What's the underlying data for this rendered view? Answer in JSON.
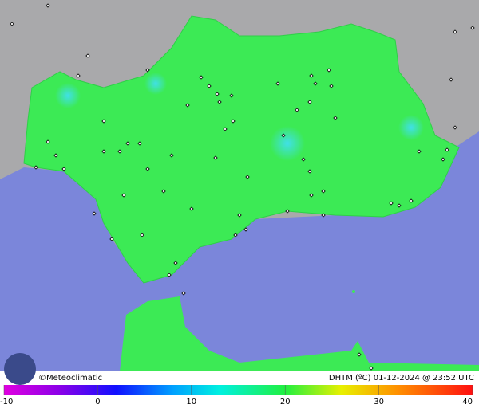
{
  "credit": "©Meteoclimatic",
  "caption": "DHTM (ºC) 01-12-2024 @ 23:52 UTC",
  "legend": {
    "ticks": [
      -10,
      0,
      10,
      20,
      30,
      40
    ]
  }
}
